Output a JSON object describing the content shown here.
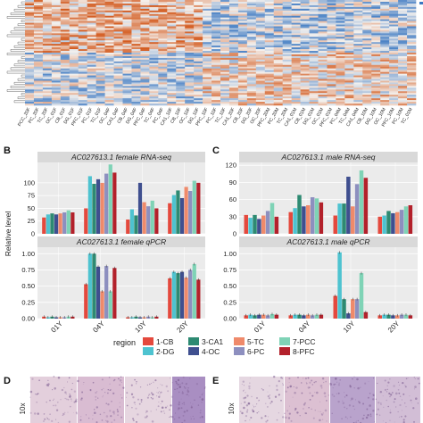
{
  "panel_labels": {
    "B": "B",
    "C": "C",
    "D": "D",
    "E": "E"
  },
  "heatmap": {
    "column_labels": [
      "PCC_20F",
      "PC_20F",
      "TC_20F",
      "OC_01F",
      "CB_01F",
      "DG_01F",
      "PFC_01F",
      "PC_01F",
      "TC_01F",
      "OC_04F",
      "CA1_04F",
      "CB_04F",
      "DG_04F",
      "PFC_04F",
      "TC_04F",
      "PC_04F",
      "CA1_10F",
      "CB_10F",
      "OC_10F",
      "DG_10F",
      "PFC_10F",
      "PC_10F",
      "TC_10F",
      "CA1_20F",
      "CB_20F",
      "DG_20F",
      "OC_20F",
      "PFC_20M",
      "PC_20M",
      "TC_20M",
      "CA1_01M",
      "CB_01M",
      "DG_01M",
      "OC_01M",
      "PFC_01M",
      "PC_04M",
      "TC_04M",
      "CA1_04M",
      "CB_10M",
      "DG_10M",
      "OC_10M",
      "PFC_10M",
      "PC_10M",
      "TC_01M"
    ],
    "colors": {
      "low": "#3b78c2",
      "mid": "#f4f1ee",
      "high": "#d35a1e"
    }
  },
  "legend": {
    "title": "region",
    "items": [
      {
        "label": "1-CB",
        "color": "#e4493d"
      },
      {
        "label": "2-DG",
        "color": "#4ec3d0"
      },
      {
        "label": "3-CA1",
        "color": "#2d8a72"
      },
      {
        "label": "4-OC",
        "color": "#3f4f8f"
      },
      {
        "label": "5-TC",
        "color": "#ef8a6b"
      },
      {
        "label": "6-PC",
        "color": "#8d8fbf"
      },
      {
        "label": "7-PCC",
        "color": "#7fd3b6"
      },
      {
        "label": "8-PFC",
        "color": "#b3212b"
      }
    ]
  },
  "micrographs": {
    "label": "10x"
  },
  "chart_data": [
    {
      "type": "bar",
      "title": "AC027613.1 female RNA-seq",
      "categories": [
        "01Y",
        "04Y",
        "10Y",
        "20Y"
      ],
      "ylabel": "Relative level",
      "ylim": [
        0,
        140
      ],
      "yticks": [
        0,
        25,
        50,
        75,
        100
      ],
      "series": [
        {
          "name": "1-CB",
          "values": [
            32,
            50,
            28,
            60
          ]
        },
        {
          "name": "2-DG",
          "values": [
            38,
            113,
            48,
            76
          ]
        },
        {
          "name": "3-CA1",
          "values": [
            40,
            98,
            36,
            85
          ]
        },
        {
          "name": "4-OC",
          "values": [
            38,
            107,
            100,
            70
          ]
        },
        {
          "name": "5-TC",
          "values": [
            40,
            100,
            62,
            92
          ]
        },
        {
          "name": "6-PC",
          "values": [
            42,
            118,
            54,
            84
          ]
        },
        {
          "name": "7-PCC",
          "values": [
            46,
            136,
            65,
            104
          ]
        },
        {
          "name": "8-PFC",
          "values": [
            42,
            120,
            50,
            100
          ]
        }
      ]
    },
    {
      "type": "bar",
      "title": "AC027613.1 female qPCR",
      "categories": [
        "01Y",
        "04Y",
        "10Y",
        "20Y"
      ],
      "ylim": [
        0,
        1.1
      ],
      "yticks": [
        0,
        0.25,
        0.5,
        0.75,
        1.0
      ],
      "series": [
        {
          "name": "1-CB",
          "values": [
            0.03,
            0.53,
            0.02,
            0.62
          ]
        },
        {
          "name": "2-DG",
          "values": [
            0.02,
            1.0,
            0.02,
            0.72
          ]
        },
        {
          "name": "3-CA1",
          "values": [
            0.03,
            1.0,
            0.03,
            0.7
          ]
        },
        {
          "name": "4-OC",
          "values": [
            0.02,
            0.8,
            0.02,
            0.72
          ]
        },
        {
          "name": "5-TC",
          "values": [
            0.02,
            0.42,
            0.02,
            0.63
          ]
        },
        {
          "name": "6-PC",
          "values": [
            0.02,
            0.81,
            0.03,
            0.75
          ]
        },
        {
          "name": "7-PCC",
          "values": [
            0.03,
            0.42,
            0.02,
            0.84
          ]
        },
        {
          "name": "8-PFC",
          "values": [
            0.03,
            0.78,
            0.03,
            0.6
          ]
        }
      ]
    },
    {
      "type": "bar",
      "title": "AC027613.1 male RNA-seq",
      "categories": [
        "01Y",
        "04Y",
        "10Y",
        "20Y"
      ],
      "ylim": [
        0,
        125
      ],
      "yticks": [
        0,
        30,
        60,
        90,
        120
      ],
      "series": [
        {
          "name": "1-CB",
          "values": [
            33,
            38,
            32,
            30
          ]
        },
        {
          "name": "2-DG",
          "values": [
            28,
            45,
            53,
            32
          ]
        },
        {
          "name": "3-CA1",
          "values": [
            33,
            68,
            53,
            40
          ]
        },
        {
          "name": "4-OC",
          "values": [
            26,
            48,
            100,
            36
          ]
        },
        {
          "name": "5-TC",
          "values": [
            32,
            50,
            48,
            38
          ]
        },
        {
          "name": "6-PC",
          "values": [
            40,
            64,
            87,
            42
          ]
        },
        {
          "name": "7-PCC",
          "values": [
            54,
            62,
            111,
            48
          ]
        },
        {
          "name": "8-PFC",
          "values": [
            30,
            55,
            98,
            50
          ]
        }
      ]
    },
    {
      "type": "bar",
      "title": "AC027613.1 male qPCR",
      "categories": [
        "01Y",
        "04Y",
        "10Y",
        "20Y"
      ],
      "ylim": [
        0,
        1.1
      ],
      "yticks": [
        0,
        0.25,
        0.5,
        0.75,
        1.0
      ],
      "series": [
        {
          "name": "1-CB",
          "values": [
            0.05,
            0.05,
            0.35,
            0.05
          ]
        },
        {
          "name": "2-DG",
          "values": [
            0.06,
            0.06,
            1.02,
            0.06
          ]
        },
        {
          "name": "3-CA1",
          "values": [
            0.05,
            0.06,
            0.3,
            0.06
          ]
        },
        {
          "name": "4-OC",
          "values": [
            0.06,
            0.05,
            0.08,
            0.05
          ]
        },
        {
          "name": "5-TC",
          "values": [
            0.06,
            0.06,
            0.3,
            0.05
          ]
        },
        {
          "name": "6-PC",
          "values": [
            0.05,
            0.05,
            0.3,
            0.06
          ]
        },
        {
          "name": "7-PCC",
          "values": [
            0.07,
            0.06,
            0.7,
            0.06
          ]
        },
        {
          "name": "8-PFC",
          "values": [
            0.06,
            0.06,
            0.1,
            0.05
          ]
        }
      ]
    }
  ]
}
